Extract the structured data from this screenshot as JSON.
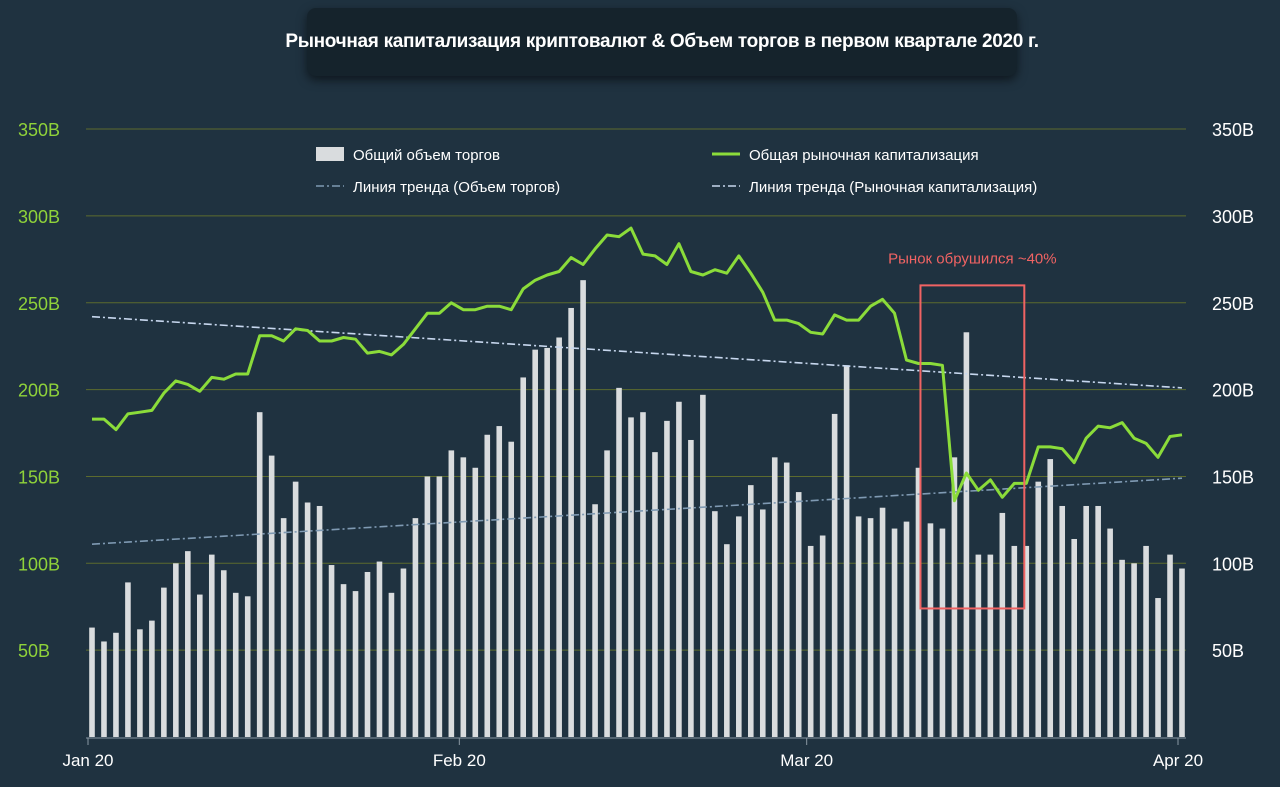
{
  "colors": {
    "background": "#1f3240",
    "volume_bars": "#d9dcde",
    "market_cap_line": "#8bdc3a",
    "left_axis_text": "#8fd23a",
    "right_axis_text": "#ffffff",
    "gridlines": "#5c6b2e",
    "trend_volume": "#7f9ab3",
    "trend_market_cap": "#c7d7ee",
    "highlight_box": "#f06363"
  },
  "chart_data": {
    "type": "bar",
    "title": "Рыночная капитализация криптовалют & Объем торгов в первом квартале 2020 г.",
    "xlabel": "",
    "ylabel": "",
    "ylim": [
      0,
      350
    ],
    "y_unit": "B",
    "y_ticks": [
      "50B",
      "100B",
      "150B",
      "200B",
      "250B",
      "300B",
      "350B"
    ],
    "y_ticks_right": [
      "50B",
      "100B",
      "150B",
      "200B",
      "250B",
      "300B",
      "350B"
    ],
    "x_ticks": [
      "Jan 20",
      "Feb 20",
      "Mar 20",
      "Apr 20"
    ],
    "x_tick_days": [
      0,
      31,
      60,
      91
    ],
    "grid": true,
    "legend_position": "top",
    "annotation": {
      "text": "Рынок обрушился ~40%",
      "day_start": 70,
      "day_end": 77,
      "y_low": 74,
      "y_high": 260
    },
    "series": [
      {
        "name": "Общий объем торгов",
        "kind": "bar",
        "values": [
          63,
          55,
          60,
          89,
          62,
          67,
          86,
          100,
          107,
          82,
          105,
          96,
          83,
          81,
          187,
          162,
          126,
          147,
          135,
          133,
          99,
          88,
          84,
          95,
          101,
          83,
          97,
          126,
          150,
          150,
          165,
          161,
          155,
          174,
          179,
          170,
          207,
          223,
          224,
          230,
          247,
          263,
          134,
          165,
          201,
          184,
          187,
          164,
          182,
          193,
          171,
          197,
          130,
          111,
          127,
          145,
          131,
          161,
          158,
          141,
          110,
          116,
          186,
          214,
          127,
          126,
          132,
          120,
          124,
          155,
          123,
          120,
          161,
          233,
          105,
          105,
          129,
          110,
          110,
          147,
          160,
          133,
          114,
          133,
          133,
          120,
          102,
          100,
          110,
          80,
          105,
          97
        ]
      },
      {
        "name": "Общая рыночная капитализация",
        "kind": "line",
        "values": [
          183,
          183,
          177,
          186,
          187,
          188,
          198,
          205,
          203,
          199,
          207,
          206,
          209,
          209,
          231,
          231,
          228,
          235,
          234,
          228,
          228,
          230,
          229,
          221,
          222,
          220,
          226,
          235,
          244,
          244,
          250,
          246,
          246,
          248,
          248,
          246,
          258,
          263,
          266,
          268,
          276,
          272,
          281,
          289,
          288,
          293,
          278,
          277,
          272,
          284,
          268,
          266,
          269,
          267,
          277,
          267,
          256,
          240,
          240,
          238,
          233,
          232,
          243,
          240,
          240,
          248,
          252,
          244,
          217,
          215,
          215,
          214,
          136,
          152,
          142,
          148,
          138,
          146,
          146,
          167,
          167,
          166,
          158,
          172,
          179,
          178,
          181,
          172,
          169,
          161,
          173,
          174
        ]
      },
      {
        "name": "Линия тренда (Объем торгов)",
        "kind": "trendline",
        "start": 111,
        "end": 149
      },
      {
        "name": "Линия тренда (Рыночная капитализация)",
        "kind": "trendline",
        "start": 242,
        "end": 201
      }
    ]
  }
}
